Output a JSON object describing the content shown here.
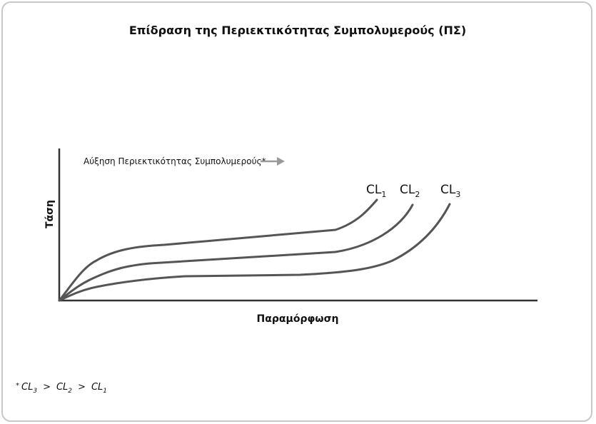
{
  "title": "Επίδραση της Περιεκτικότητας Συμπολυμερούς (ΠΣ)",
  "annotation": "Αύξηση Περιεκτικότητας Συμπολυμερούς*",
  "y_axis_label": "Τάση",
  "x_axis_label": "Παραμόρφωση",
  "curves": [
    {
      "text": "CL",
      "sub": "1"
    },
    {
      "text": "CL",
      "sub": "2"
    },
    {
      "text": "CL",
      "sub": "3"
    }
  ],
  "footnote": {
    "star": "*",
    "separator": ">",
    "items": [
      {
        "text": "CL",
        "sub": "3"
      },
      {
        "text": "CL",
        "sub": "2"
      },
      {
        "text": "CL",
        "sub": "1"
      }
    ]
  }
}
